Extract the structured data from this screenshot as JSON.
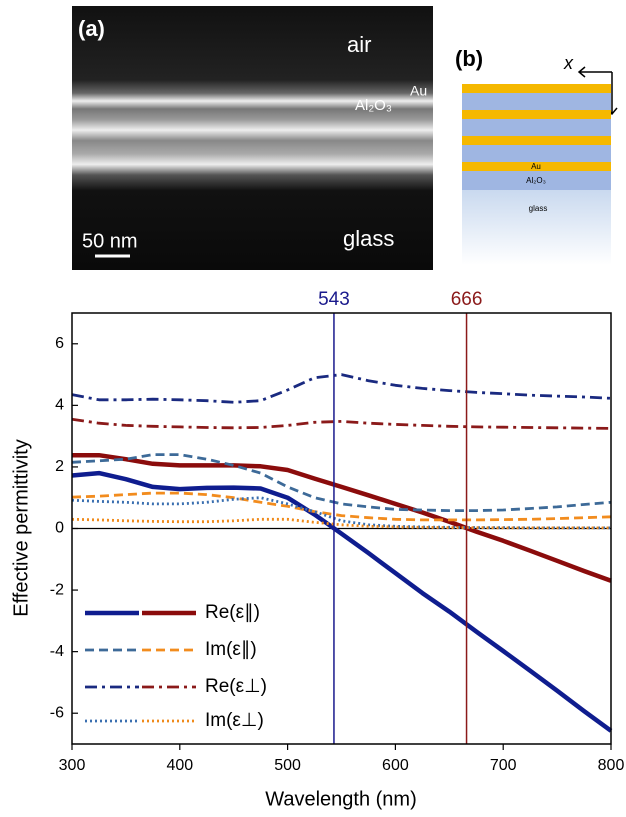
{
  "panel_a": {
    "label": "(a)",
    "top_medium": "air",
    "metal": "Au",
    "dielectric": "Al₂O₃",
    "scale_bar": "50 nm",
    "substrate": "glass"
  },
  "panel_b": {
    "label": "(b)",
    "axis": "x",
    "metal": "Au",
    "dielectric": "Al₂O₃",
    "substrate": "glass"
  },
  "chart_data": {
    "type": "line",
    "xlabel": "Wavelength (nm)",
    "ylabel": "Effective permittivity",
    "x": [
      300,
      325,
      350,
      375,
      400,
      425,
      450,
      475,
      500,
      525,
      550,
      575,
      600,
      625,
      650,
      675,
      700,
      725,
      750,
      775,
      800
    ],
    "xlim": [
      300,
      800
    ],
    "xticks": [
      300,
      400,
      500,
      600,
      700,
      800
    ],
    "ylim": [
      -7,
      7
    ],
    "yticks": [
      -6,
      -4,
      -2,
      0,
      2,
      4,
      6
    ],
    "vlines": [
      {
        "x": 543,
        "color": "#1a1a8c"
      },
      {
        "x": 666,
        "color": "#8b1a1a"
      }
    ],
    "legend": "lower left",
    "series": [
      {
        "name": "Re(ε∥)",
        "dash": "solid",
        "lines": [
          {
            "color": "#0f1d8f",
            "values": [
              1.72,
              1.8,
              1.6,
              1.35,
              1.28,
              1.32,
              1.33,
              1.3,
              1.0,
              0.45,
              -0.17,
              -0.8,
              -1.45,
              -2.1,
              -2.7,
              -3.35,
              -3.98,
              -4.62,
              -5.27,
              -5.93,
              -6.57
            ]
          },
          {
            "color": "#8b0c0c",
            "values": [
              2.38,
              2.38,
              2.25,
              2.1,
              2.05,
              2.05,
              2.05,
              2.02,
              1.9,
              1.62,
              1.35,
              1.08,
              0.8,
              0.52,
              0.22,
              -0.1,
              -0.4,
              -0.72,
              -1.05,
              -1.38,
              -1.7
            ]
          }
        ]
      },
      {
        "name": "Im(ε∥)",
        "dash": "dashed",
        "lines": [
          {
            "color": "#3d6a98",
            "values": [
              2.15,
              2.2,
              2.25,
              2.4,
              2.4,
              2.25,
              2.05,
              1.8,
              1.35,
              1.0,
              0.8,
              0.7,
              0.62,
              0.6,
              0.58,
              0.58,
              0.6,
              0.65,
              0.7,
              0.78,
              0.85
            ]
          },
          {
            "color": "#f28c1e",
            "values": [
              1.02,
              1.05,
              1.1,
              1.15,
              1.15,
              1.1,
              1.0,
              0.85,
              0.72,
              0.55,
              0.42,
              0.35,
              0.3,
              0.28,
              0.28,
              0.28,
              0.29,
              0.3,
              0.32,
              0.35,
              0.38
            ]
          }
        ]
      },
      {
        "name": "Re(ε⊥)",
        "dash": "dashdot",
        "lines": [
          {
            "color": "#1a2a80",
            "values": [
              4.35,
              4.18,
              4.18,
              4.2,
              4.18,
              4.15,
              4.1,
              4.15,
              4.5,
              4.9,
              5.0,
              4.8,
              4.65,
              4.55,
              4.48,
              4.42,
              4.38,
              4.33,
              4.3,
              4.27,
              4.23
            ]
          },
          {
            "color": "#8b1a1a",
            "values": [
              3.55,
              3.42,
              3.35,
              3.32,
              3.3,
              3.28,
              3.27,
              3.28,
              3.35,
              3.45,
              3.48,
              3.42,
              3.38,
              3.35,
              3.32,
              3.3,
              3.29,
              3.28,
              3.27,
              3.26,
              3.25
            ]
          }
        ]
      },
      {
        "name": "Im(ε⊥)",
        "dash": "dotted",
        "lines": [
          {
            "color": "#3a6fb0",
            "values": [
              0.92,
              0.88,
              0.85,
              0.8,
              0.8,
              0.85,
              0.95,
              1.0,
              0.8,
              0.55,
              0.25,
              0.12,
              0.07,
              0.05,
              0.04,
              0.03,
              0.03,
              0.02,
              0.02,
              0.02,
              0.02
            ]
          },
          {
            "color": "#f08a1a",
            "values": [
              0.3,
              0.28,
              0.25,
              0.23,
              0.22,
              0.22,
              0.25,
              0.3,
              0.3,
              0.2,
              0.12,
              0.07,
              0.05,
              0.04,
              0.03,
              0.03,
              0.02,
              0.02,
              0.02,
              0.02,
              0.02
            ]
          }
        ]
      }
    ]
  }
}
